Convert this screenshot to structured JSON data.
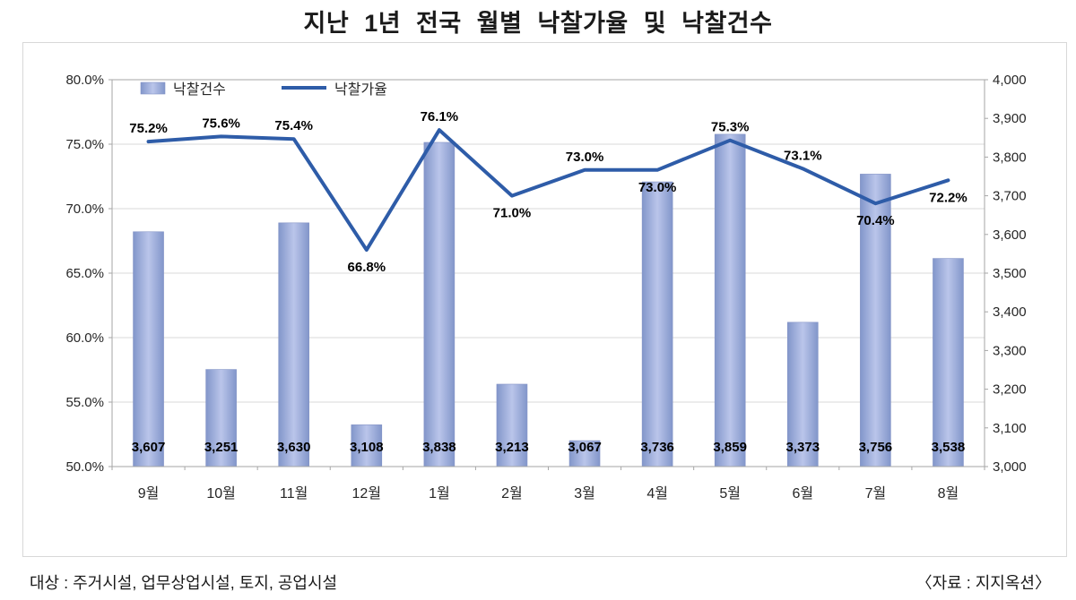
{
  "title": "지난 1년 전국 월별 낙찰가율 및 낙찰건수",
  "chart_data": {
    "type": "combo-bar-line",
    "categories": [
      "9월",
      "10월",
      "11월",
      "12월",
      "1월",
      "2월",
      "3월",
      "4월",
      "5월",
      "6월",
      "7월",
      "8월"
    ],
    "series": [
      {
        "name": "낙찰건수",
        "type": "bar",
        "axis": "right",
        "values": [
          3607,
          3251,
          3630,
          3108,
          3838,
          3213,
          3067,
          3736,
          3859,
          3373,
          3756,
          3538
        ],
        "labels": [
          "3,607",
          "3,251",
          "3,630",
          "3,108",
          "3,838",
          "3,213",
          "3,067",
          "3,736",
          "3,859",
          "3,373",
          "3,756",
          "3,538"
        ]
      },
      {
        "name": "낙찰가율",
        "type": "line",
        "axis": "left",
        "values": [
          75.2,
          75.6,
          75.4,
          66.8,
          76.1,
          71.0,
          73.0,
          73.0,
          75.3,
          73.1,
          70.4,
          72.2
        ],
        "labels": [
          "75.2%",
          "75.6%",
          "75.4%",
          "66.8%",
          "76.1%",
          "71.0%",
          "73.0%",
          "73.0%",
          "75.3%",
          "73.1%",
          "70.4%",
          "72.2%"
        ],
        "label_positions": [
          "above",
          "above",
          "above",
          "below",
          "above",
          "below",
          "above",
          "below",
          "above",
          "above",
          "below",
          "below"
        ]
      }
    ],
    "left_axis": {
      "min": 50,
      "max": 80,
      "step": 5,
      "tick_labels": [
        "50.0%",
        "55.0%",
        "60.0%",
        "65.0%",
        "70.0%",
        "75.0%",
        "80.0%"
      ]
    },
    "right_axis": {
      "min": 3000,
      "max": 4000,
      "step": 100,
      "tick_labels": [
        "3,000",
        "3,100",
        "3,200",
        "3,300",
        "3,400",
        "3,500",
        "3,600",
        "3,700",
        "3,800",
        "3,900",
        "4,000"
      ]
    },
    "legend": [
      "낙찰건수",
      "낙찰가율"
    ],
    "legend_position": "top-left-inside",
    "grid": true,
    "colors": {
      "bar": "#96a5d7",
      "bar_edge": "#8494c6",
      "line": "#2e5ca8",
      "grid": "#d9d9d9",
      "plot_border": "#a6a6a6"
    }
  },
  "footer": {
    "left": "대상 : 주거시설, 업무상업시설, 토지, 공업시설",
    "right": "〈자료 : 지지옥션〉"
  }
}
